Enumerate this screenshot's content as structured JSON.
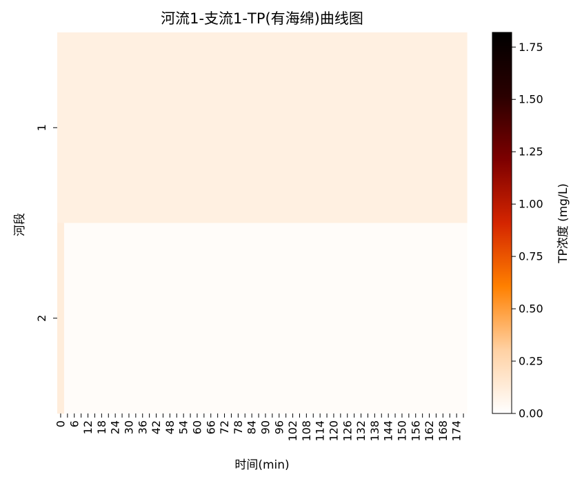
{
  "chart_data": {
    "type": "heatmap",
    "title": "河流1-支流1-TP(有海绵)曲线图",
    "xlabel": "时间(min)",
    "ylabel": "河段",
    "x_tick_labels": [
      "0",
      "6",
      "12",
      "18",
      "24",
      "30",
      "36",
      "42",
      "48",
      "54",
      "60",
      "66",
      "72",
      "78",
      "84",
      "90",
      "96",
      "102",
      "108",
      "114",
      "120",
      "126",
      "132",
      "138",
      "144",
      "150",
      "156",
      "162",
      "168",
      "174"
    ],
    "y_tick_labels": [
      "1",
      "2"
    ],
    "x_values_min": [
      0,
      3,
      6,
      9,
      12,
      15,
      18,
      21,
      24,
      27,
      30,
      33,
      36,
      39,
      42,
      45,
      48,
      51,
      54,
      57,
      60,
      63,
      66,
      69,
      72,
      75,
      78,
      81,
      84,
      87,
      90,
      93,
      96,
      99,
      102,
      105,
      108,
      111,
      114,
      117,
      120,
      123,
      126,
      129,
      132,
      135,
      138,
      141,
      144,
      147,
      150,
      153,
      156,
      159,
      162,
      165,
      168,
      171,
      174,
      177
    ],
    "rows": [
      {
        "segment": "1",
        "values": [
          0.1,
          0.1,
          0.1,
          0.1,
          0.1,
          0.1,
          0.1,
          0.1,
          0.1,
          0.1,
          0.1,
          0.1,
          0.1,
          0.1,
          0.1,
          0.1,
          0.1,
          0.1,
          0.1,
          0.1,
          0.1,
          0.1,
          0.1,
          0.1,
          0.1,
          0.1,
          0.1,
          0.1,
          0.1,
          0.1,
          0.1,
          0.1,
          0.1,
          0.1,
          0.1,
          0.1,
          0.1,
          0.1,
          0.1,
          0.1,
          0.1,
          0.1,
          0.1,
          0.1,
          0.1,
          0.1,
          0.1,
          0.1,
          0.1,
          0.1,
          0.1,
          0.1,
          0.1,
          0.1,
          0.1,
          0.1,
          0.1,
          0.1,
          0.1,
          0.1
        ]
      },
      {
        "segment": "2",
        "values": [
          0.12,
          0.02,
          0.02,
          0.02,
          0.02,
          0.02,
          0.02,
          0.02,
          0.02,
          0.02,
          0.02,
          0.02,
          0.02,
          0.02,
          0.02,
          0.02,
          0.02,
          0.02,
          0.02,
          0.02,
          0.02,
          0.02,
          0.02,
          0.02,
          0.02,
          0.02,
          0.02,
          0.02,
          0.02,
          0.02,
          0.02,
          0.02,
          0.02,
          0.02,
          0.02,
          0.02,
          0.02,
          0.02,
          0.02,
          0.02,
          0.02,
          0.02,
          0.02,
          0.02,
          0.02,
          0.02,
          0.02,
          0.02,
          0.02,
          0.02,
          0.02,
          0.02,
          0.02,
          0.02,
          0.02,
          0.02,
          0.02,
          0.02,
          0.02,
          0.02
        ]
      }
    ],
    "colorbar": {
      "label": "TP浓度 (mg/L)",
      "range": [
        0,
        1.82
      ],
      "ticks": [
        "0.00",
        "0.25",
        "0.50",
        "0.75",
        "1.00",
        "1.25",
        "1.50",
        "1.75"
      ],
      "tick_values": [
        0,
        0.25,
        0.5,
        0.75,
        1.0,
        1.25,
        1.5,
        1.75
      ],
      "colormap": "gist_heat_r",
      "colormap_stops": [
        "#ffffff",
        "#ffd1a3",
        "#ff8000",
        "#d42500",
        "#7d0000",
        "#2a0000",
        "#000000"
      ]
    },
    "grid": false,
    "legend": "colorbar-right"
  }
}
